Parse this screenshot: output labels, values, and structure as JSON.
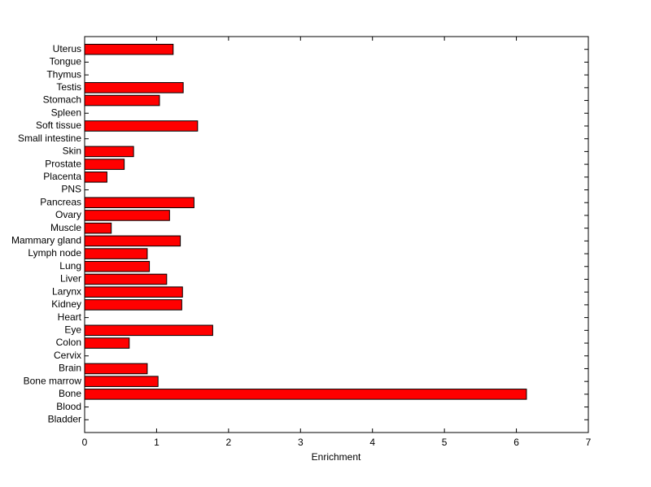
{
  "chart_data": {
    "type": "barh",
    "xlabel": "Enrichment",
    "categories": [
      "Bladder",
      "Blood",
      "Bone",
      "Bone marrow",
      "Brain",
      "Cervix",
      "Colon",
      "Eye",
      "Heart",
      "Kidney",
      "Larynx",
      "Liver",
      "Lung",
      "Lymph node",
      "Mammary gland",
      "Muscle",
      "Ovary",
      "Pancreas",
      "PNS",
      "Placenta",
      "Prostate",
      "Skin",
      "Small intestine",
      "Soft tissue",
      "Spleen",
      "Stomach",
      "Testis",
      "Thymus",
      "Tongue",
      "Uterus"
    ],
    "values": [
      0,
      0,
      6.14,
      1.02,
      0.87,
      0,
      0.62,
      1.78,
      0,
      1.35,
      1.36,
      1.14,
      0.9,
      0.87,
      1.33,
      0.37,
      1.18,
      1.52,
      0,
      0.31,
      0.55,
      0.68,
      0,
      1.57,
      0,
      1.04,
      1.37,
      0,
      0,
      1.23
    ],
    "color": "#ff0000",
    "xlim": [
      0,
      7
    ],
    "xticks": [
      0,
      1,
      2,
      3,
      4,
      5,
      6,
      7
    ]
  }
}
